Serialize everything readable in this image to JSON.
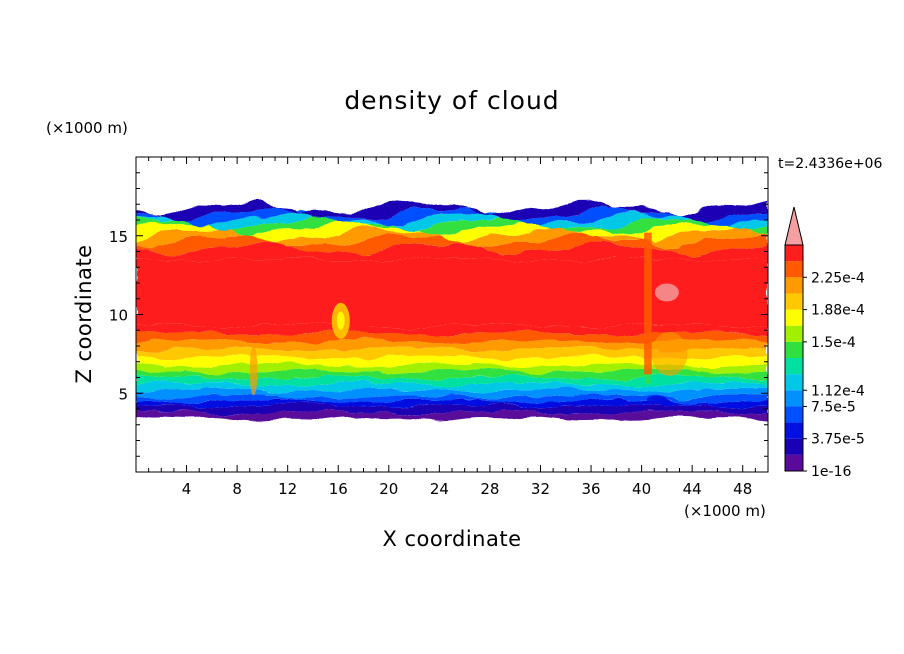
{
  "chart_data": {
    "type": "heatmap",
    "title": "density of cloud",
    "xlabel": "X coordinate",
    "ylabel": "Z coordinate",
    "x_unit": "(×1000 m)",
    "y_unit": "(×1000 m)",
    "time_label": "t=2.4336e+06",
    "xlim": [
      0,
      50
    ],
    "ylim": [
      0,
      20
    ],
    "x_ticks": [
      4,
      8,
      12,
      16,
      20,
      24,
      28,
      32,
      36,
      40,
      44,
      48
    ],
    "y_ticks": [
      5,
      10,
      15
    ],
    "colorbar": {
      "labels": [
        "2.25e-4",
        "1.88e-4",
        "1.5e-4",
        "1.12e-4",
        "7.5e-5",
        "3.75e-5",
        "1e-16"
      ],
      "label_values": [
        0.000225,
        0.000188,
        0.00015,
        0.000112,
        7.5e-05,
        3.75e-05,
        1e-16
      ],
      "levels": [
        1e-16,
        1.875e-05,
        3.75e-05,
        5.625e-05,
        7.5e-05,
        9.375e-05,
        0.0001125,
        0.00013125,
        0.00015,
        0.00016875,
        0.0001875,
        0.00020625,
        0.000225,
        0.00024375
      ],
      "colors": [
        "#5a0a9a",
        "#1a00b4",
        "#0010e0",
        "#0050ff",
        "#0090ff",
        "#00c8e6",
        "#00e0a0",
        "#30e040",
        "#a0f000",
        "#ffff00",
        "#ffc800",
        "#ff9a00",
        "#ff5a00",
        "#ff1e1e"
      ],
      "extend_color": "#f4a0a0"
    },
    "profile": {
      "z": [
        3.4,
        3.8,
        4.2,
        4.5,
        4.8,
        5.2,
        5.6,
        6.0,
        6.4,
        6.8,
        7.3,
        7.8,
        8.3,
        8.8,
        9.3,
        13.5,
        14.2,
        14.7,
        15.1,
        15.5,
        15.8,
        16.1,
        16.4,
        16.8
      ],
      "level_index": [
        0,
        1,
        2,
        3,
        4,
        5,
        6,
        7,
        8,
        9,
        10,
        11,
        12,
        13,
        13,
        13,
        12,
        11,
        9,
        7,
        5,
        3,
        1,
        0
      ]
    },
    "cloud_extent_z": [
      3.4,
      16.8
    ]
  }
}
